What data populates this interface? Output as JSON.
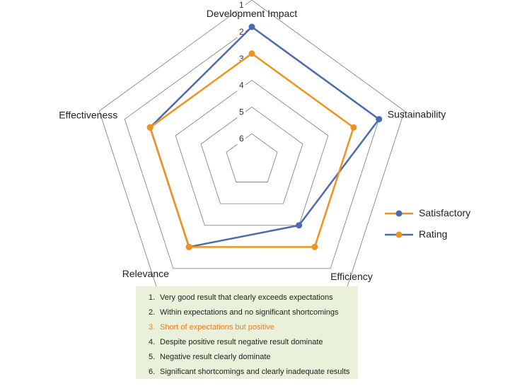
{
  "colors": {
    "satisfactory": "#4a6bb0",
    "rating": "#f0931e",
    "grid": "#7a7a7a",
    "highlight": "#ee7d1e",
    "scale_box_bg": "#eaf1da"
  },
  "chart_data": {
    "type": "radar",
    "title": "",
    "axes": [
      "Development Impact",
      "Sustainability",
      "Efficiency",
      "Relevance",
      "Effectiveness"
    ],
    "tick_labels": [
      "1",
      "2",
      "3",
      "4",
      "5",
      "6"
    ],
    "scale": {
      "best": 1,
      "worst": 6
    },
    "series": [
      {
        "name": "Satisfactory",
        "values": [
          2,
          2,
          4,
          3,
          3
        ],
        "line_color": "#4a6bb0",
        "marker_color": "#4a6bb0"
      },
      {
        "name": "Rating",
        "values": [
          3,
          3,
          3,
          3,
          3
        ],
        "line_color": "#f0931e",
        "marker_color": "#f0931e"
      }
    ],
    "legend": [
      {
        "label": "Satisfactory",
        "line_color": "#f0931e",
        "marker_color": "#4a6bb0"
      },
      {
        "label": "Rating",
        "line_color": "#4a6bb0",
        "marker_color": "#f0931e"
      }
    ],
    "legend_position": "right"
  },
  "scale_key": [
    {
      "num": "1.",
      "text": "Very good result that clearly exceeds expectations",
      "highlight": false
    },
    {
      "num": "2.",
      "text": "Within expectations and no significant shortcomings",
      "highlight": false
    },
    {
      "num": "3.",
      "text": "Short of expectations but positive",
      "highlight": true
    },
    {
      "num": "4.",
      "text": "Despite positive result negative result dominate",
      "highlight": false
    },
    {
      "num": "5.",
      "text": "Negative result clearly dominate",
      "highlight": false
    },
    {
      "num": "6.",
      "text": "Significant shortcomings and clearly inadequate results",
      "highlight": false
    }
  ]
}
